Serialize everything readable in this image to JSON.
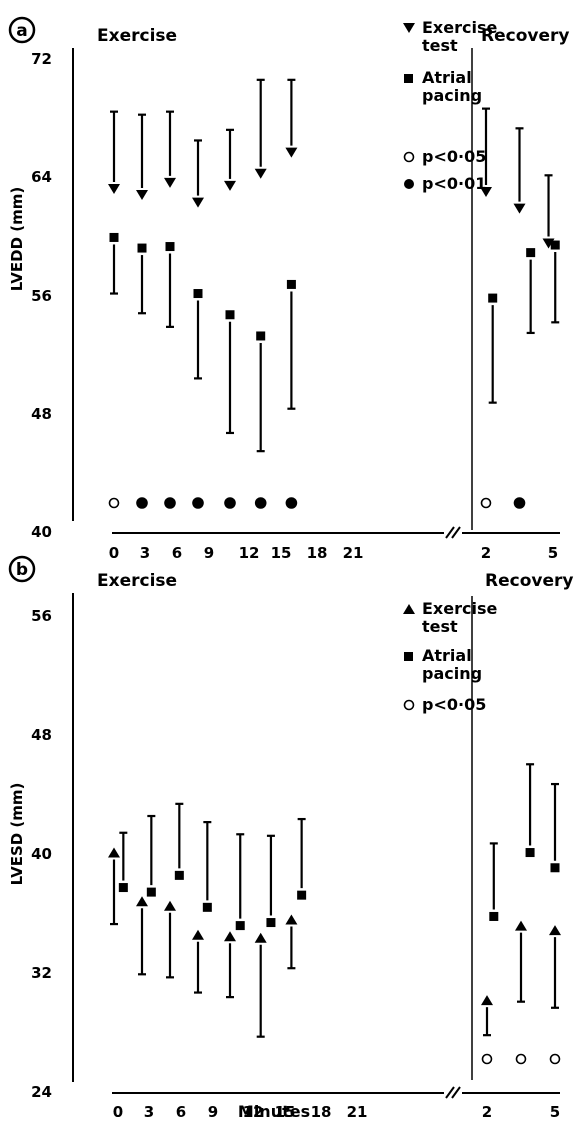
{
  "chart_data": [
    {
      "type": "scatter",
      "panel_label": "a",
      "ylabel": "LVEDD (mm)",
      "ylim": [
        40,
        72
      ],
      "yticks": [
        "40",
        "48",
        "56",
        "64",
        "72"
      ],
      "xticks_exercise": [
        "0",
        "3",
        "6",
        "9",
        "12",
        "15",
        "18",
        "21"
      ],
      "xticks_recovery": [
        "2",
        "5"
      ],
      "section_exercise": "Exercise",
      "section_recovery": "Recovery",
      "legend": [
        "Exercise test",
        "Atrial pacing",
        "p<0·05",
        "p<0·01"
      ],
      "series": [
        {
          "name": "Exercise test",
          "marker": "triangle-down",
          "points": [
            {
              "phase": "exercise",
              "x": 0,
              "y": 62.7,
              "err": 67.8
            },
            {
              "phase": "exercise",
              "x": 3,
              "y": 62.3,
              "err": 67.6
            },
            {
              "phase": "exercise",
              "x": 6,
              "y": 63.1,
              "err": 67.8
            },
            {
              "phase": "exercise",
              "x": 9,
              "y": 61.8,
              "err": 65.9
            },
            {
              "phase": "exercise",
              "x": 12,
              "y": 62.9,
              "err": 66.6
            },
            {
              "phase": "exercise",
              "x": 15,
              "y": 63.7,
              "err": 69.9
            },
            {
              "phase": "exercise",
              "x": 18,
              "y": 65.1,
              "err": 69.9
            },
            {
              "phase": "recovery",
              "x": 2,
              "y": 62.5,
              "err": 68.0
            },
            {
              "phase": "recovery",
              "x": 3.5,
              "y": 61.4,
              "err": 66.7
            },
            {
              "phase": "recovery",
              "x": 4.8,
              "y": 59.1,
              "err": 63.6
            }
          ]
        },
        {
          "name": "Atrial pacing",
          "marker": "square",
          "points": [
            {
              "phase": "exercise",
              "x": 0,
              "y": 59.5,
              "err": 55.8
            },
            {
              "phase": "exercise",
              "x": 3,
              "y": 58.8,
              "err": 54.5
            },
            {
              "phase": "exercise",
              "x": 6,
              "y": 58.9,
              "err": 53.6
            },
            {
              "phase": "exercise",
              "x": 9,
              "y": 55.8,
              "err": 50.2
            },
            {
              "phase": "exercise",
              "x": 12,
              "y": 54.4,
              "err": 46.6
            },
            {
              "phase": "exercise",
              "x": 15,
              "y": 53.0,
              "err": 45.4
            },
            {
              "phase": "exercise",
              "x": 18,
              "y": 56.4,
              "err": 48.2
            },
            {
              "phase": "recovery",
              "x": 2.3,
              "y": 55.5,
              "err": 48.6
            },
            {
              "phase": "recovery",
              "x": 4.0,
              "y": 58.5,
              "err": 53.2
            },
            {
              "phase": "recovery",
              "x": 5.1,
              "y": 59.0,
              "err": 53.9
            }
          ]
        }
      ],
      "significance": [
        {
          "phase": "exercise",
          "x": 0,
          "marker": "p<0·05"
        },
        {
          "phase": "exercise",
          "x": 3,
          "marker": "p<0·01"
        },
        {
          "phase": "exercise",
          "x": 6,
          "marker": "p<0·01"
        },
        {
          "phase": "exercise",
          "x": 9,
          "marker": "p<0·01"
        },
        {
          "phase": "exercise",
          "x": 12,
          "marker": "p<0·01"
        },
        {
          "phase": "exercise",
          "x": 15,
          "marker": "p<0·01"
        },
        {
          "phase": "exercise",
          "x": 18,
          "marker": "p<0·01"
        },
        {
          "phase": "recovery",
          "x": 2,
          "marker": "p<0·05"
        },
        {
          "phase": "recovery",
          "x": 3.5,
          "marker": "p<0·01"
        }
      ]
    },
    {
      "type": "scatter",
      "panel_label": "b",
      "ylabel": "LVESD (mm)",
      "xlabel": "Minutes",
      "ylim": [
        24,
        56
      ],
      "yticks": [
        "24",
        "32",
        "40",
        "48",
        "56"
      ],
      "xticks_exercise": [
        "0",
        "3",
        "6",
        "9",
        "12",
        "15",
        "18",
        "21"
      ],
      "xticks_recovery": [
        "2",
        "5"
      ],
      "section_exercise": "Exercise",
      "section_recovery": "Recovery",
      "legend": [
        "Exercise test",
        "Atrial pacing",
        "p<0·05"
      ],
      "series": [
        {
          "name": "Exercise test",
          "marker": "triangle-up",
          "points": [
            {
              "phase": "exercise",
              "x": 0,
              "y": 39.8,
              "err": 35.1
            },
            {
              "phase": "exercise",
              "x": 3,
              "y": 36.6,
              "err": 31.8
            },
            {
              "phase": "exercise",
              "x": 6,
              "y": 36.3,
              "err": 31.6
            },
            {
              "phase": "exercise",
              "x": 9,
              "y": 34.4,
              "err": 30.6
            },
            {
              "phase": "exercise",
              "x": 12,
              "y": 34.3,
              "err": 30.3
            },
            {
              "phase": "exercise",
              "x": 15,
              "y": 34.2,
              "err": 27.7
            },
            {
              "phase": "exercise",
              "x": 18,
              "y": 35.4,
              "err": 32.2
            },
            {
              "phase": "recovery",
              "x": 2,
              "y": 30.1,
              "err": 27.8
            },
            {
              "phase": "recovery",
              "x": 3.5,
              "y": 35.0,
              "err": 30.0
            },
            {
              "phase": "recovery",
              "x": 5,
              "y": 34.7,
              "err": 29.6
            }
          ]
        },
        {
          "name": "Atrial pacing",
          "marker": "square",
          "points": [
            {
              "phase": "exercise",
              "x": 1,
              "y": 37.5,
              "err": 41.1
            },
            {
              "phase": "exercise",
              "x": 4,
              "y": 37.2,
              "err": 42.2
            },
            {
              "phase": "exercise",
              "x": 7,
              "y": 38.3,
              "err": 43.0
            },
            {
              "phase": "exercise",
              "x": 10,
              "y": 36.2,
              "err": 41.8
            },
            {
              "phase": "exercise",
              "x": 13,
              "y": 35.0,
              "err": 41.0
            },
            {
              "phase": "exercise",
              "x": 16,
              "y": 35.2,
              "err": 40.9
            },
            {
              "phase": "exercise",
              "x": 19,
              "y": 37.0,
              "err": 42.0
            },
            {
              "phase": "recovery",
              "x": 2.3,
              "y": 35.6,
              "err": 40.4
            },
            {
              "phase": "recovery",
              "x": 3.9,
              "y": 39.8,
              "err": 45.6
            },
            {
              "phase": "recovery",
              "x": 5.0,
              "y": 38.8,
              "err": 44.3
            }
          ]
        }
      ],
      "significance": [
        {
          "phase": "recovery",
          "x": 2,
          "marker": "p<0·05"
        },
        {
          "phase": "recovery",
          "x": 3.5,
          "marker": "p<0·05"
        },
        {
          "phase": "recovery",
          "x": 5,
          "marker": "p<0·05"
        }
      ]
    }
  ]
}
